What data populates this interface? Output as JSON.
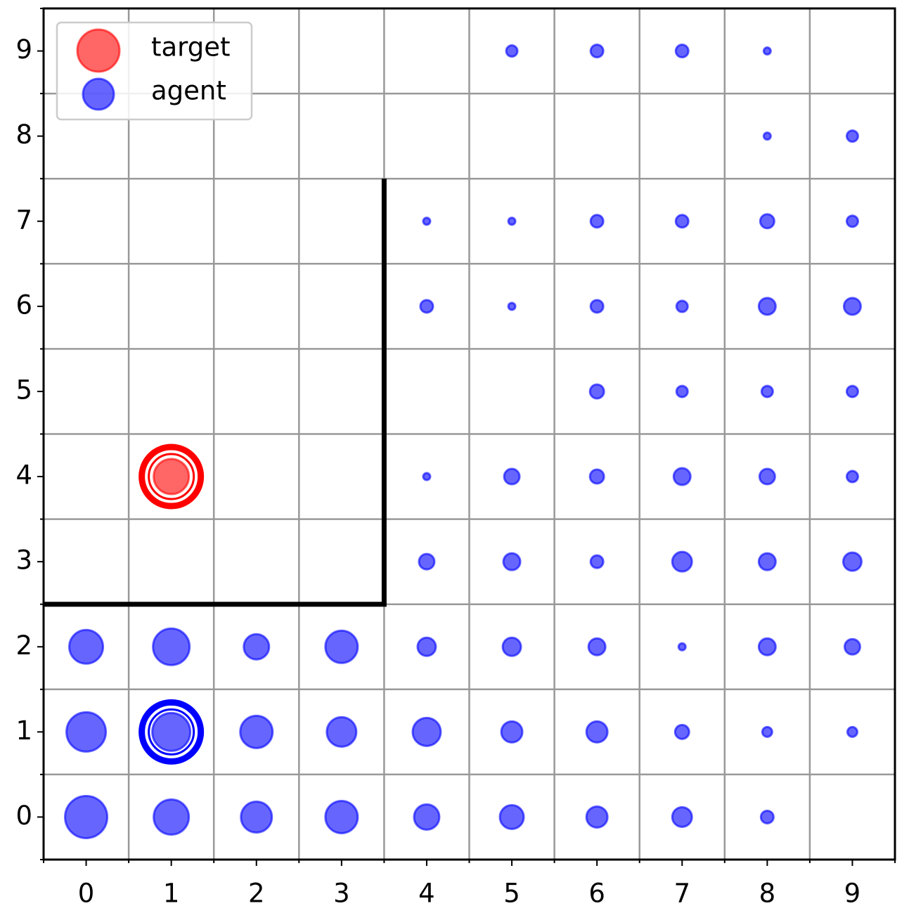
{
  "chart_data": {
    "type": "scatter",
    "xlim": [
      -0.5,
      9.5
    ],
    "ylim": [
      -0.5,
      9.5
    ],
    "xticks": [
      0,
      1,
      2,
      3,
      4,
      5,
      6,
      7,
      8,
      9
    ],
    "yticks": [
      0,
      1,
      2,
      3,
      4,
      5,
      6,
      7,
      8,
      9
    ],
    "grid_ticks": [
      -0.5,
      0.5,
      1.5,
      2.5,
      3.5,
      4.5,
      5.5,
      6.5,
      7.5,
      8.5,
      9.5
    ],
    "grid": true,
    "legend": "upper left",
    "wall": {
      "color": "#000000",
      "x": [
        -0.5,
        3.5,
        3.5
      ],
      "y": [
        2.5,
        2.5,
        7.5
      ]
    },
    "series": [
      {
        "name": "target",
        "color": "#ff0000",
        "x": [
          1
        ],
        "y": [
          4
        ],
        "sizes": [
          25
        ],
        "ring": {
          "x": 1,
          "y": 4
        }
      },
      {
        "name": "agent",
        "color": "#0000ff",
        "x": [
          0,
          1,
          2,
          3,
          4,
          5,
          6,
          7,
          8,
          0,
          1,
          2,
          3,
          4,
          5,
          6,
          7,
          8,
          9,
          0,
          1,
          2,
          3,
          4,
          5,
          6,
          7,
          8,
          9,
          4,
          5,
          6,
          7,
          8,
          9,
          4,
          5,
          6,
          7,
          8,
          9,
          6,
          7,
          8,
          9,
          4,
          5,
          6,
          7,
          8,
          9,
          4,
          5,
          6,
          7,
          8,
          9,
          8,
          9,
          5,
          6,
          7,
          8
        ],
        "y": [
          0,
          0,
          0,
          0,
          0,
          0,
          0,
          0,
          0,
          1,
          1,
          1,
          1,
          1,
          1,
          1,
          1,
          1,
          1,
          2,
          2,
          2,
          2,
          2,
          2,
          2,
          2,
          2,
          2,
          3,
          3,
          3,
          3,
          3,
          3,
          4,
          4,
          4,
          4,
          4,
          4,
          5,
          5,
          5,
          5,
          6,
          6,
          6,
          6,
          6,
          6,
          7,
          7,
          7,
          7,
          7,
          7,
          8,
          8,
          9,
          9,
          9,
          9
        ],
        "sizes": [
          30,
          25,
          22,
          23,
          18,
          17,
          15,
          14,
          9,
          28,
          27,
          23,
          21,
          20,
          15,
          15,
          10,
          7,
          7,
          24,
          26,
          18,
          23,
          13,
          13,
          12,
          5,
          12,
          11,
          11,
          12,
          9,
          14,
          12,
          13,
          5,
          11,
          10,
          12,
          11,
          8,
          10,
          8,
          8,
          8,
          9,
          5,
          9,
          8,
          12,
          12,
          5,
          5,
          9,
          9,
          10,
          8,
          5,
          8,
          8,
          9,
          9,
          5
        ],
        "ring": {
          "x": 1,
          "y": 1
        }
      }
    ]
  }
}
